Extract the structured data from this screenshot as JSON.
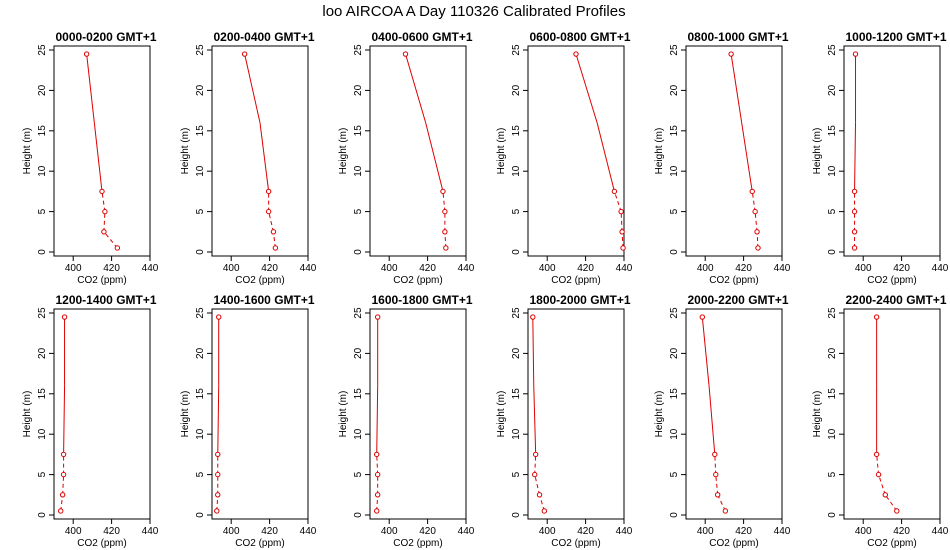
{
  "figure": {
    "title": "loo AIRCOA A  Day 110326  Calibrated Profiles"
  },
  "chart_data": {
    "type": "line",
    "xlabel": "CO2 (ppm)",
    "ylabel": "Height (m)",
    "xlim": [
      390,
      440
    ],
    "ylim": [
      0,
      25
    ],
    "xticks": [
      400,
      420,
      440
    ],
    "yticks": [
      0,
      5,
      10,
      15,
      20,
      25
    ],
    "line_color": "#dd0000",
    "heights": [
      0.5,
      2.5,
      5.0,
      7.5,
      16.0,
      24.5
    ],
    "panels": [
      {
        "title": "0000-0200 GMT+1",
        "co2": [
          423,
          416,
          416.5,
          415,
          411,
          407
        ]
      },
      {
        "title": "0200-0400 GMT+1",
        "co2": [
          423,
          422,
          419.5,
          419.5,
          415,
          407
        ]
      },
      {
        "title": "0400-0600 GMT+1",
        "co2": [
          429.5,
          429,
          429,
          428,
          419,
          408.5
        ]
      },
      {
        "title": "0600-0800 GMT+1",
        "co2": [
          439.5,
          439,
          438.5,
          435,
          426,
          415
        ]
      },
      {
        "title": "0800-1000 GMT+1",
        "co2": [
          427.5,
          427,
          426,
          424.5,
          419,
          413.5
        ]
      },
      {
        "title": "1000-1200 GMT+1",
        "co2": [
          395.5,
          395.5,
          395.5,
          395.5,
          396,
          396
        ]
      },
      {
        "title": "1200-1400 GMT+1",
        "co2": [
          393.5,
          394.5,
          395,
          395,
          395.5,
          395.5
        ]
      },
      {
        "title": "1400-1600 GMT+1",
        "co2": [
          392.5,
          393,
          393,
          393,
          393.5,
          393.5
        ]
      },
      {
        "title": "1600-1800 GMT+1",
        "co2": [
          393.5,
          394,
          394,
          393.5,
          394,
          394
        ]
      },
      {
        "title": "1800-2000 GMT+1",
        "co2": [
          398.5,
          396,
          393.5,
          394,
          393,
          392.5
        ]
      },
      {
        "title": "2000-2200 GMT+1",
        "co2": [
          410.5,
          406.5,
          405.5,
          405,
          402,
          398.5
        ]
      },
      {
        "title": "2200-2400 GMT+1",
        "co2": [
          417.5,
          411.5,
          408,
          407,
          407,
          407
        ]
      }
    ]
  }
}
